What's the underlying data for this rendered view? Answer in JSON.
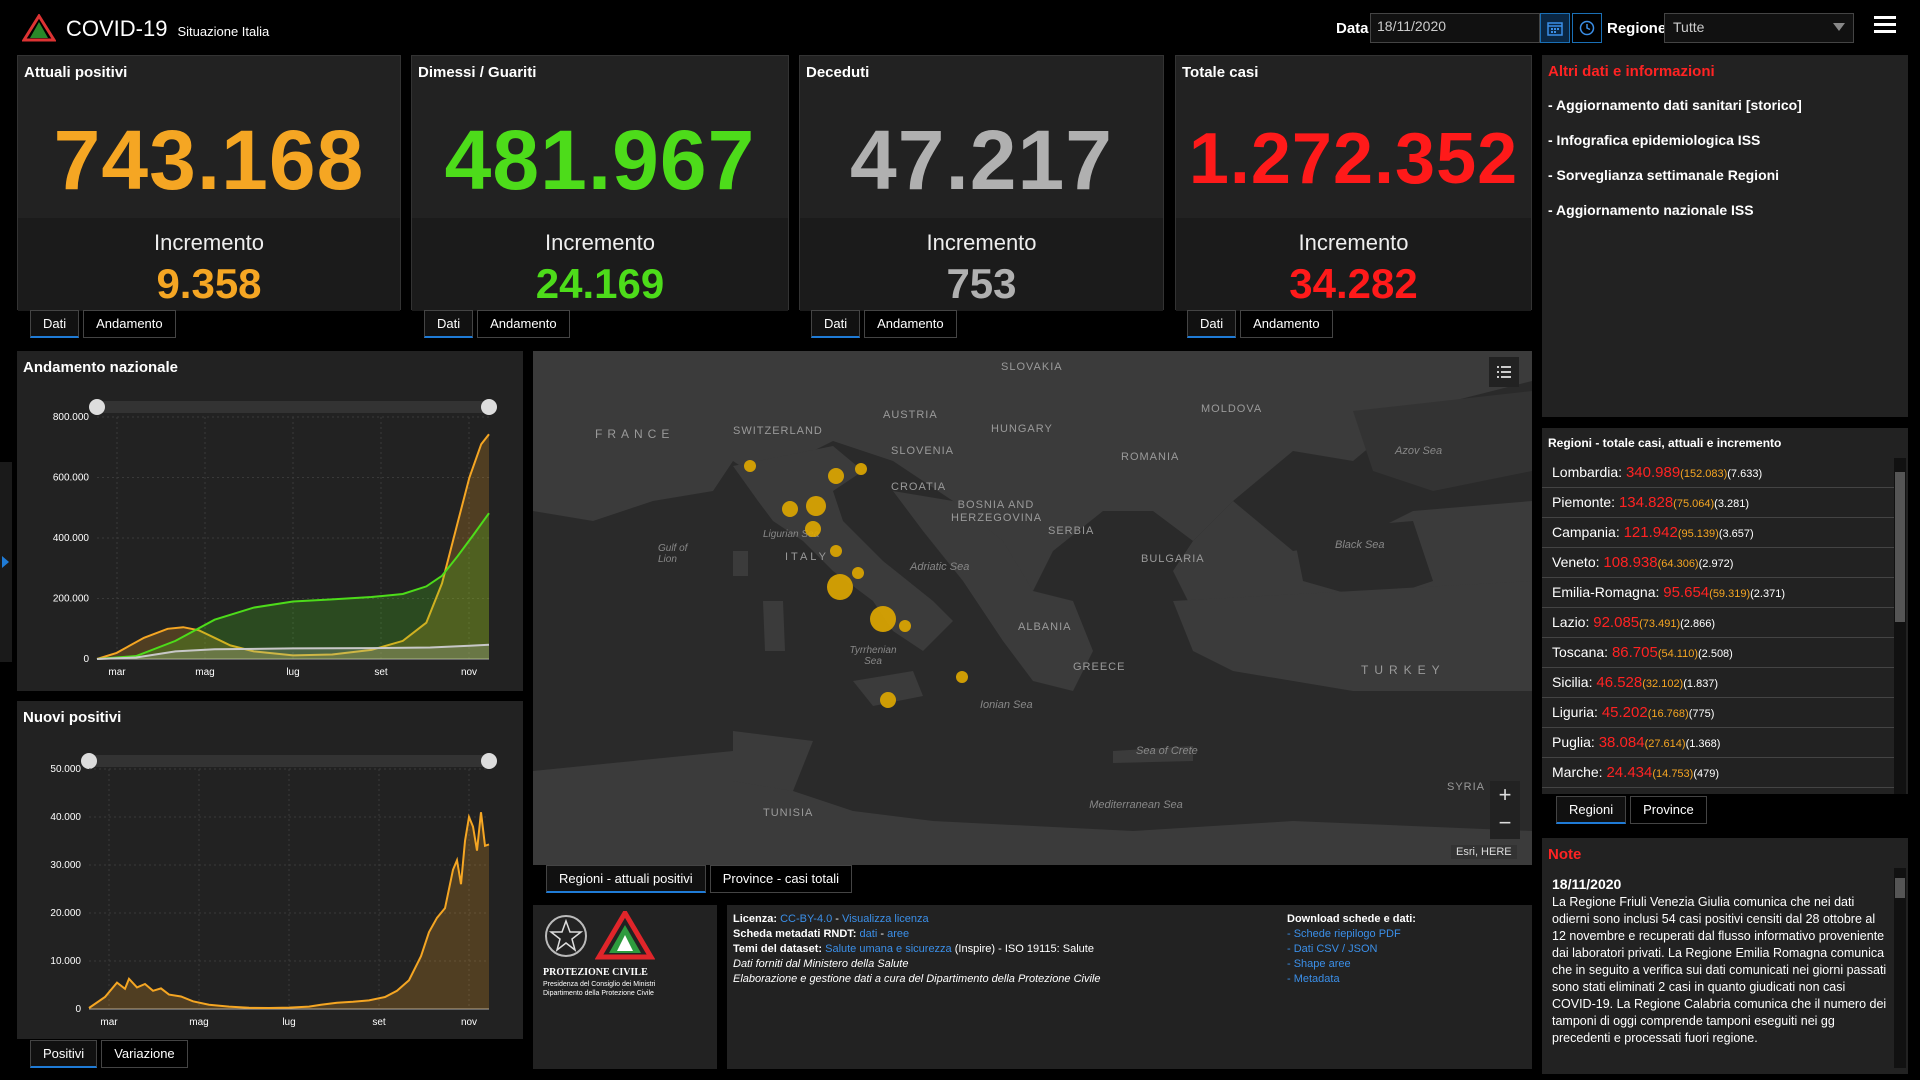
{
  "header": {
    "title": "COVID-19",
    "subtitle": "Situazione Italia",
    "data_label": "Data",
    "date_value": "18/11/2020",
    "regione_label": "Regione",
    "regione_value": "Tutte"
  },
  "kpis": [
    {
      "title": "Attuali positivi",
      "value": "743.168",
      "inc_label": "Incremento",
      "inc_value": "9.358",
      "color": "#f5a623",
      "tabs": [
        "Dati",
        "Andamento"
      ]
    },
    {
      "title": "Dimessi / Guariti",
      "value": "481.967",
      "inc_label": "Incremento",
      "inc_value": "24.169",
      "color": "#4ddc1a",
      "tabs": [
        "Dati",
        "Andamento"
      ]
    },
    {
      "title": "Deceduti",
      "value": "47.217",
      "inc_label": "Incremento",
      "inc_value": "753",
      "color": "#b0b0b0",
      "tabs": [
        "Dati",
        "Andamento"
      ]
    },
    {
      "title": "Totale casi",
      "value": "1.272.352",
      "inc_label": "Incremento",
      "inc_value": "34.282",
      "color": "#ff1a1a",
      "tabs": [
        "Dati",
        "Andamento"
      ]
    }
  ],
  "info": {
    "title": "Altri dati e informazioni",
    "items": [
      "- Aggiornamento dati sanitari [storico]",
      "- Infografica epidemiologica ISS",
      "- Sorveglianza settimanale Regioni",
      "- Aggiornamento nazionale ISS"
    ]
  },
  "regions": {
    "title": "Regioni - totale casi, attuali e incremento",
    "rows": [
      {
        "name": "Lombardia:",
        "tot": "340.989",
        "cur": "(152.083)",
        "inc": "(7.633)"
      },
      {
        "name": "Piemonte:",
        "tot": "134.828",
        "cur": "(75.064)",
        "inc": "(3.281)"
      },
      {
        "name": "Campania:",
        "tot": "121.942",
        "cur": "(95.139)",
        "inc": "(3.657)"
      },
      {
        "name": "Veneto:",
        "tot": "108.938",
        "cur": "(64.306)",
        "inc": "(2.972)"
      },
      {
        "name": "Emilia-Romagna:",
        "tot": "95.654",
        "cur": "(59.319)",
        "inc": "(2.371)"
      },
      {
        "name": "Lazio:",
        "tot": "92.085",
        "cur": "(73.491)",
        "inc": "(2.866)"
      },
      {
        "name": "Toscana:",
        "tot": "86.705",
        "cur": "(54.110)",
        "inc": "(2.508)"
      },
      {
        "name": "Sicilia:",
        "tot": "46.528",
        "cur": "(32.102)",
        "inc": "(1.837)"
      },
      {
        "name": "Liguria:",
        "tot": "45.202",
        "cur": "(16.768)",
        "inc": "(775)"
      },
      {
        "name": "Puglia:",
        "tot": "38.084",
        "cur": "(27.614)",
        "inc": "(1.368)"
      },
      {
        "name": "Marche:",
        "tot": "24.434",
        "cur": "(14.753)",
        "inc": "(479)"
      }
    ],
    "tabs": [
      "Regioni",
      "Province"
    ]
  },
  "note": {
    "title": "Note",
    "date": "18/11/2020",
    "text": "La Regione Friuli Venezia Giulia comunica che nei dati odierni sono inclusi 54 casi positivi censiti dal 28 ottobre al 12 novembre e recuperati dal flusso informativo proveniente dai laboratori privati. La Regione Emilia Romagna comunica che in seguito a verifica sui dati comunicati nei giorni passati sono stati eliminati 2 casi in quanto giudicati non casi COVID-19. La Regione Calabria comunica che il numero dei tamponi di oggi comprende tamponi eseguiti nei gg precedenti e processati fuori regione."
  },
  "map": {
    "countries": [
      "FRANCE",
      "SWITZERLAND",
      "AUSTRIA",
      "SLOVAKIA",
      "HUNGARY",
      "SLOVENIA",
      "CROATIA",
      "BOSNIA AND HERZEGOVINA",
      "SERBIA",
      "ROMANIA",
      "MOLDOVA",
      "BULGARIA",
      "ITALY",
      "ALBANIA",
      "GREECE",
      "TURKEY",
      "TUNISIA",
      "SYRIA"
    ],
    "seas": [
      "Ligurian Sea",
      "Gulf of Lion",
      "Adriatic Sea",
      "Tyrrhenian Sea",
      "Ionian Sea",
      "Black Sea",
      "Azov Sea",
      "Sea of Crete",
      "Mediterranean Sea"
    ],
    "attribution": "Esri, HERE",
    "tabs": [
      "Regioni - attuali positivi",
      "Province - casi totali"
    ]
  },
  "license": {
    "lines": [
      {
        "label": "Licenza:",
        "text": "",
        "links": [
          "CC-BY-4.0",
          "Visualizza licenza"
        ]
      },
      {
        "label": "Scheda metadati RNDT:",
        "text": "",
        "links": [
          "dati",
          "aree"
        ]
      },
      {
        "label": "Temi del dataset:",
        "text": "(Inspire) - ISO 19115: Salute",
        "links": [
          "Salute umana e sicurezza"
        ]
      }
    ],
    "italic_lines": [
      "Dati forniti dal Ministero della Salute",
      "Elaborazione e gestione dati a cura del Dipartimento della Protezione Civile"
    ],
    "download_title": "Download schede e dati:",
    "downloads": [
      "- Schede riepilogo PDF",
      "- Dati CSV / JSON",
      "- Shape aree",
      "- Metadata"
    ]
  },
  "protezione": {
    "name": "PROTEZIONE CIVILE",
    "line1": "Presidenza del Consiglio dei Ministri",
    "line2": "Dipartimento della Protezione Civile"
  },
  "colors": {
    "positivi": "#f5a623",
    "guariti": "#4ddc1a",
    "deceduti": "#b0b0b0",
    "totale": "#ff1a1a",
    "accent": "#1f7bd6"
  },
  "chart_data": [
    {
      "type": "area",
      "title": "Andamento nazionale",
      "x_ticks": [
        "mar",
        "mag",
        "lug",
        "set",
        "nov"
      ],
      "y_ticks": [
        "0",
        "200.000",
        "400.000",
        "600.000",
        "800.000"
      ],
      "ylim": [
        0,
        800000
      ],
      "tabs": [],
      "series": [
        {
          "name": "Attuali positivi",
          "color": "#f5a623",
          "points": [
            [
              0,
              0
            ],
            [
              0.05,
              20000
            ],
            [
              0.12,
              70000
            ],
            [
              0.18,
              100000
            ],
            [
              0.22,
              105000
            ],
            [
              0.26,
              95000
            ],
            [
              0.3,
              70000
            ],
            [
              0.34,
              45000
            ],
            [
              0.4,
              25000
            ],
            [
              0.5,
              12000
            ],
            [
              0.6,
              15000
            ],
            [
              0.7,
              30000
            ],
            [
              0.78,
              60000
            ],
            [
              0.84,
              120000
            ],
            [
              0.88,
              250000
            ],
            [
              0.92,
              450000
            ],
            [
              0.95,
              600000
            ],
            [
              0.98,
              710000
            ],
            [
              1.0,
              743168
            ]
          ]
        },
        {
          "name": "Dimessi / Guariti",
          "color": "#4ddc1a",
          "points": [
            [
              0,
              0
            ],
            [
              0.1,
              10000
            ],
            [
              0.2,
              60000
            ],
            [
              0.3,
              130000
            ],
            [
              0.4,
              170000
            ],
            [
              0.5,
              190000
            ],
            [
              0.6,
              197000
            ],
            [
              0.7,
              205000
            ],
            [
              0.78,
              215000
            ],
            [
              0.84,
              240000
            ],
            [
              0.88,
              275000
            ],
            [
              0.92,
              340000
            ],
            [
              0.96,
              410000
            ],
            [
              1.0,
              481967
            ]
          ]
        },
        {
          "name": "Deceduti",
          "color": "#c8c8c8",
          "points": [
            [
              0,
              0
            ],
            [
              0.1,
              5000
            ],
            [
              0.2,
              25000
            ],
            [
              0.3,
              32000
            ],
            [
              0.5,
              35000
            ],
            [
              0.7,
              36000
            ],
            [
              0.85,
              38000
            ],
            [
              0.95,
              44000
            ],
            [
              1.0,
              47217
            ]
          ]
        }
      ]
    },
    {
      "type": "area",
      "title": "Nuovi positivi",
      "x_ticks": [
        "mar",
        "mag",
        "lug",
        "set",
        "nov"
      ],
      "y_ticks": [
        "0",
        "10.000",
        "20.000",
        "30.000",
        "40.000",
        "50.000"
      ],
      "ylim": [
        0,
        50000
      ],
      "tabs": [
        "Positivi",
        "Variazione"
      ],
      "series": [
        {
          "name": "Nuovi positivi",
          "color": "#f5a623",
          "points": [
            [
              0,
              200
            ],
            [
              0.04,
              2500
            ],
            [
              0.07,
              5500
            ],
            [
              0.09,
              4200
            ],
            [
              0.1,
              6300
            ],
            [
              0.12,
              4500
            ],
            [
              0.14,
              5200
            ],
            [
              0.16,
              3800
            ],
            [
              0.18,
              4300
            ],
            [
              0.2,
              3000
            ],
            [
              0.23,
              2600
            ],
            [
              0.26,
              1600
            ],
            [
              0.3,
              900
            ],
            [
              0.35,
              500
            ],
            [
              0.4,
              250
            ],
            [
              0.45,
              200
            ],
            [
              0.5,
              300
            ],
            [
              0.55,
              500
            ],
            [
              0.58,
              900
            ],
            [
              0.62,
              1300
            ],
            [
              0.66,
              1500
            ],
            [
              0.7,
              1800
            ],
            [
              0.74,
              2500
            ],
            [
              0.77,
              3800
            ],
            [
              0.8,
              6000
            ],
            [
              0.83,
              11000
            ],
            [
              0.85,
              16000
            ],
            [
              0.87,
              19000
            ],
            [
              0.89,
              21000
            ],
            [
              0.91,
              29000
            ],
            [
              0.92,
              31000
            ],
            [
              0.93,
              26000
            ],
            [
              0.94,
              35000
            ],
            [
              0.95,
              40000
            ],
            [
              0.96,
              38000
            ],
            [
              0.97,
              33000
            ],
            [
              0.98,
              41000
            ],
            [
              0.99,
              34000
            ],
            [
              1.0,
              34282
            ]
          ]
        }
      ]
    }
  ]
}
